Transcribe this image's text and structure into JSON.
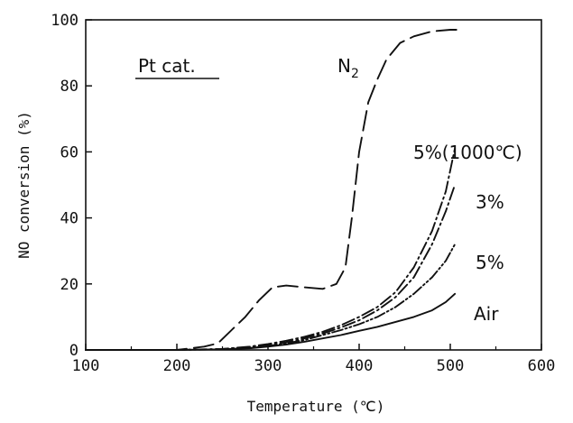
{
  "chart_data": {
    "type": "line",
    "xlabel": "Temperature (℃)",
    "ylabel": "NO conversion (%)",
    "xlim": [
      100,
      600
    ],
    "ylim": [
      0,
      100
    ],
    "xticks": [
      "100",
      "200",
      "300",
      "400",
      "500",
      "600"
    ],
    "yticks": [
      "0",
      "20",
      "40",
      "60",
      "80",
      "100"
    ],
    "grid": false,
    "annotations": {
      "panel_label": "Pt cat."
    },
    "series": [
      {
        "name": "N2",
        "label_main": "N",
        "label_sub": "2",
        "dash": "long-dash",
        "x": [
          100,
          150,
          200,
          215,
          230,
          245,
          260,
          275,
          290,
          305,
          320,
          340,
          360,
          375,
          385,
          392,
          400,
          410,
          420,
          430,
          445,
          460,
          480,
          500,
          510
        ],
        "y": [
          0,
          0,
          0,
          0.5,
          1,
          2,
          6,
          10,
          15,
          19,
          19.5,
          19,
          18.5,
          20,
          25,
          40,
          60,
          75,
          82,
          88,
          93,
          95,
          96.5,
          97,
          97
        ]
      },
      {
        "name": "5%(1000℃)",
        "dash": "dash-dot",
        "x": [
          100,
          200,
          250,
          280,
          300,
          320,
          340,
          360,
          380,
          400,
          420,
          440,
          460,
          480,
          495,
          505
        ],
        "y": [
          0,
          0,
          0.3,
          1,
          1.8,
          2.8,
          4,
          5.5,
          7.5,
          10,
          13,
          17.5,
          25,
          36,
          48,
          61
        ]
      },
      {
        "name": "3%",
        "dash": "dash-dot",
        "x": [
          100,
          200,
          250,
          280,
          300,
          320,
          340,
          360,
          380,
          400,
          420,
          440,
          460,
          480,
          495,
          505
        ],
        "y": [
          0,
          0,
          0.3,
          0.8,
          1.5,
          2.3,
          3.5,
          5,
          6.8,
          9,
          12,
          16,
          22,
          32,
          42,
          50
        ]
      },
      {
        "name": "5%",
        "dash": "dash-dot-dot",
        "x": [
          100,
          200,
          250,
          280,
          300,
          320,
          340,
          360,
          380,
          400,
          420,
          440,
          460,
          480,
          495,
          505
        ],
        "y": [
          0,
          0,
          0.2,
          0.6,
          1.2,
          2,
          3,
          4.5,
          6,
          7.8,
          10,
          13,
          17,
          22,
          27,
          32
        ]
      },
      {
        "name": "Air",
        "dash": "solid",
        "x": [
          100,
          200,
          250,
          280,
          300,
          320,
          340,
          360,
          380,
          400,
          420,
          440,
          460,
          480,
          495,
          505
        ],
        "y": [
          0,
          0,
          0.2,
          0.5,
          1,
          1.6,
          2.5,
          3.5,
          4.5,
          5.8,
          7,
          8.5,
          10,
          12,
          14.5,
          17
        ]
      }
    ]
  }
}
